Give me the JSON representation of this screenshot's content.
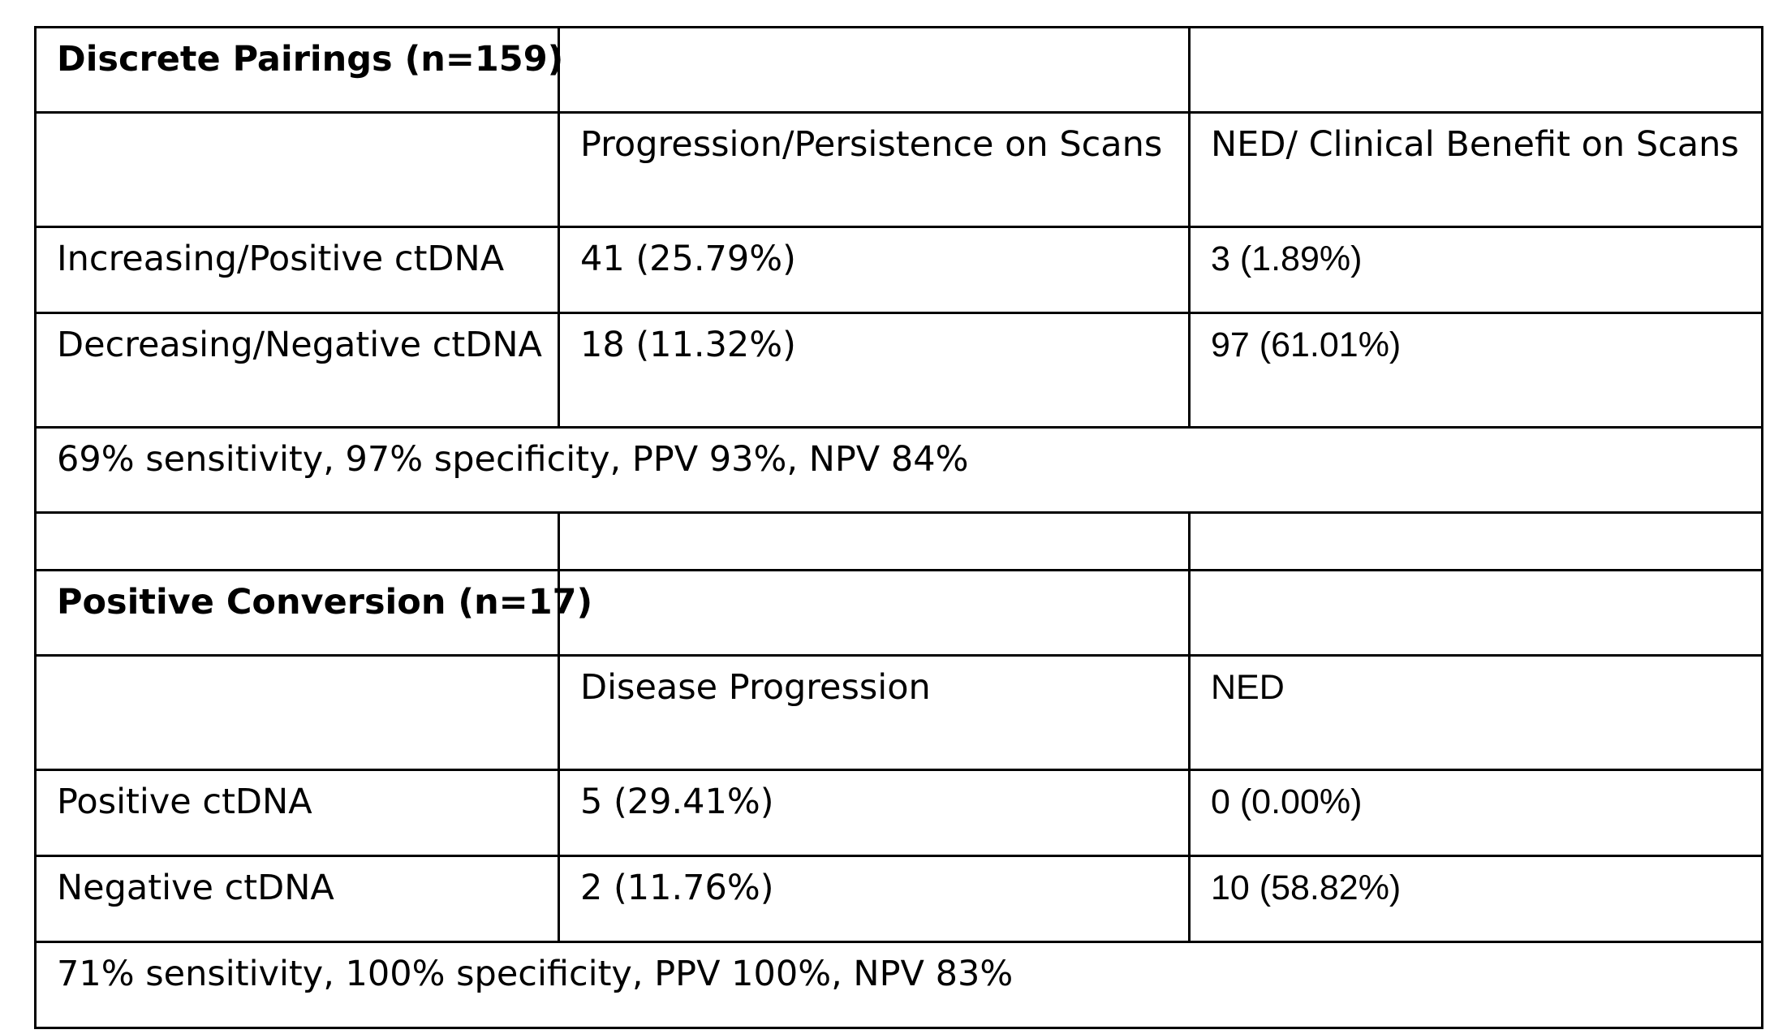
{
  "section1": {
    "title": "Discrete Pairings (n=159)",
    "col_headers": [
      "Progression/Persistence on Scans",
      "NED/ Clinical Benefit on Scans"
    ],
    "rows": [
      {
        "label": "Increasing/Positive ctDNA",
        "a": "41 (25.79%)",
        "b": "3 (1.89%)"
      },
      {
        "label": "Decreasing/Negative ctDNA",
        "a": "18 (11.32%)",
        "b": "97 (61.01%)"
      }
    ],
    "summary": "69% sensitivity, 97% specificity, PPV 93%, NPV 84%"
  },
  "section2": {
    "title": "Positive Conversion (n=17)",
    "col_headers": [
      "Disease Progression",
      "NED"
    ],
    "rows": [
      {
        "label": "Positive ctDNA",
        "a": "5 (29.41%)",
        "b": "0 (0.00%)"
      },
      {
        "label": "Negative ctDNA",
        "a": "2 (11.76%)",
        "b": "10 (58.82%)"
      }
    ],
    "summary": "71% sensitivity, 100% specificity, PPV 100%, NPV 83%"
  }
}
